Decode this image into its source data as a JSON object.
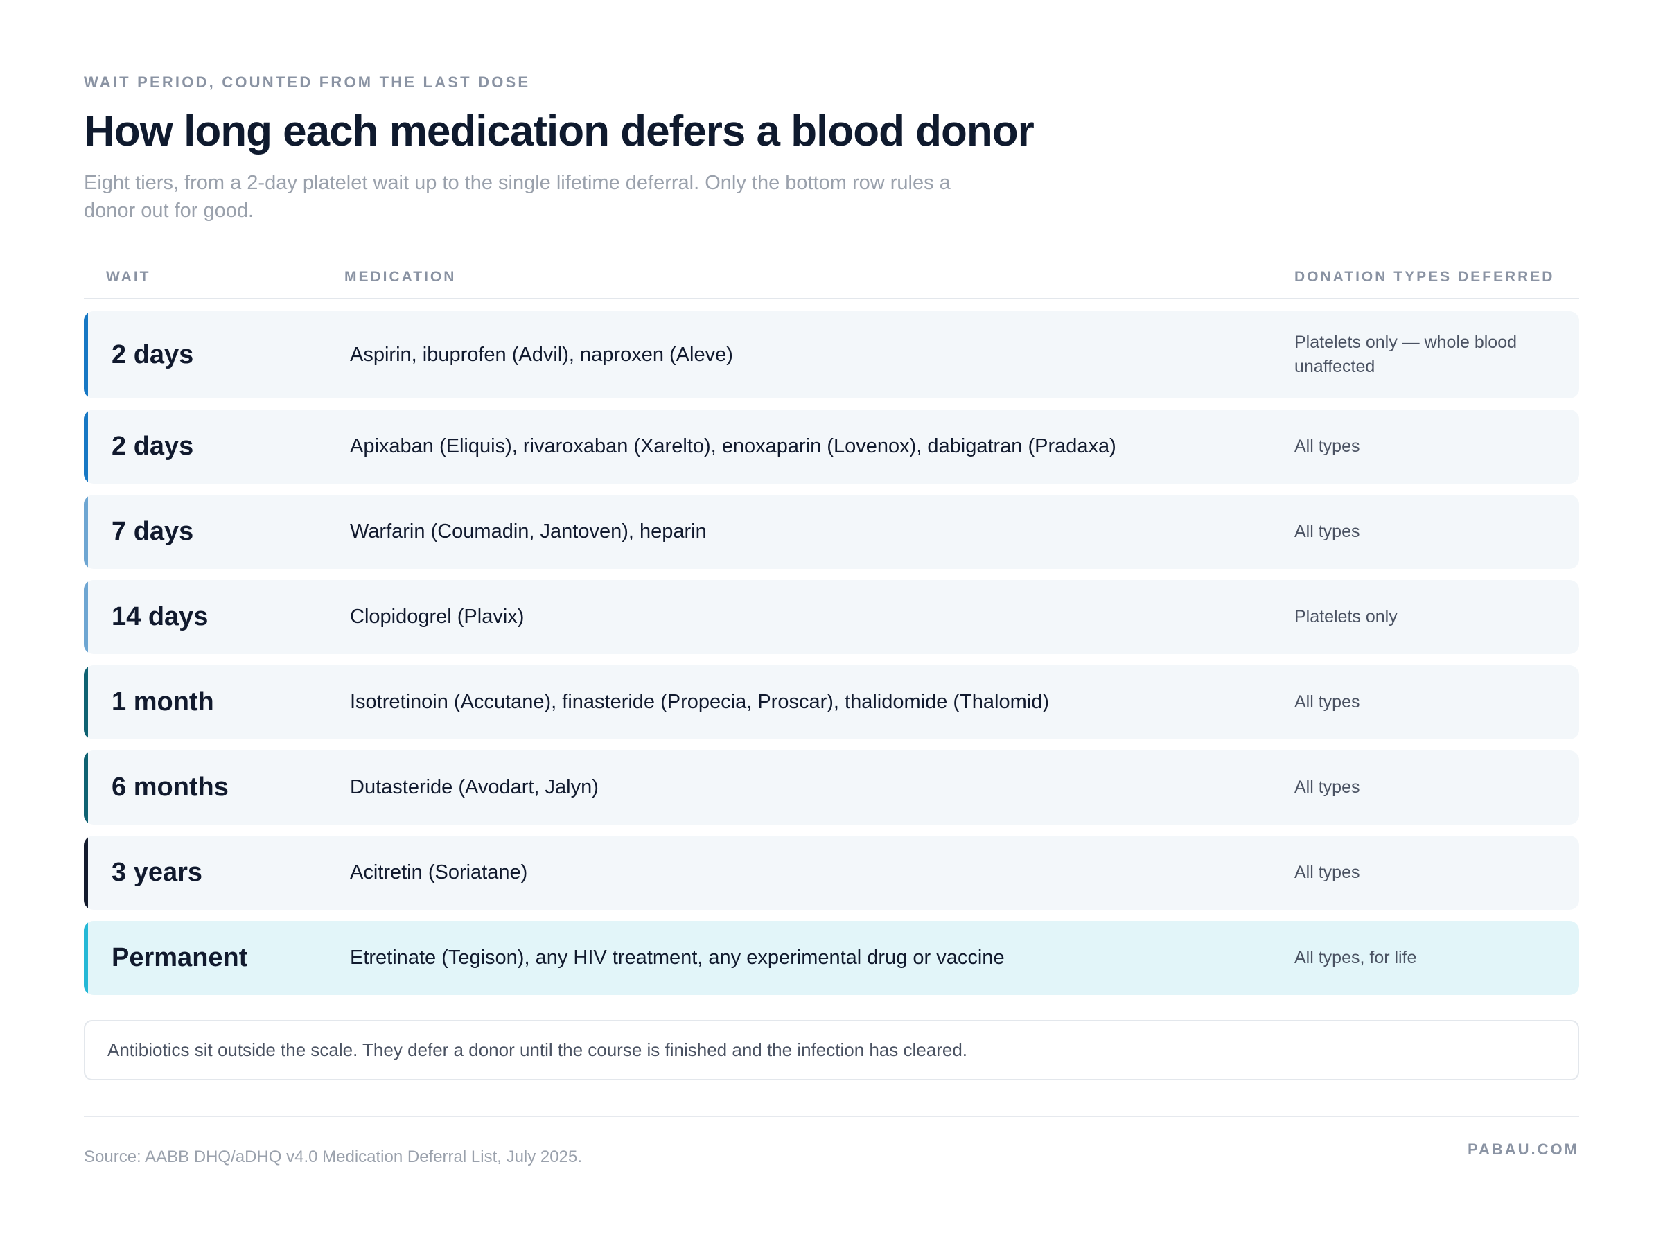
{
  "header": {
    "eyebrow": "WAIT PERIOD, COUNTED FROM THE LAST DOSE",
    "title": "How long each medication defers a blood donor",
    "subtitle": "Eight tiers, from a 2-day platelet wait up to the single lifetime deferral. Only the bottom row rules a donor out for good."
  },
  "table": {
    "columns": {
      "wait": "WAIT",
      "medication": "MEDICATION",
      "types": "DONATION TYPES DEFERRED"
    },
    "rows": [
      {
        "wait": "2 days",
        "medication": "Aspirin, ibuprofen (Advil), naproxen (Aleve)",
        "types": "Platelets only — whole blood unaffected",
        "accent": "#1778c4"
      },
      {
        "wait": "2 days",
        "medication": "Apixaban (Eliquis), rivaroxaban (Xarelto), enoxaparin (Lovenox), dabigatran (Pradaxa)",
        "types": "All types",
        "accent": "#1778c4"
      },
      {
        "wait": "7 days",
        "medication": "Warfarin (Coumadin, Jantoven), heparin",
        "types": "All types",
        "accent": "#6ea6d2"
      },
      {
        "wait": "14 days",
        "medication": "Clopidogrel (Plavix)",
        "types": "Platelets only",
        "accent": "#6ea6d2"
      },
      {
        "wait": "1 month",
        "medication": "Isotretinoin (Accutane), finasteride (Propecia, Proscar), thalidomide (Thalomid)",
        "types": "All types",
        "accent": "#0f6272"
      },
      {
        "wait": "6 months",
        "medication": "Dutasteride (Avodart, Jalyn)",
        "types": "All types",
        "accent": "#0f6272"
      },
      {
        "wait": "3 years",
        "medication": "Acitretin (Soriatane)",
        "types": "All types",
        "accent": "#141c2e"
      },
      {
        "wait": "Permanent",
        "medication": "Etretinate (Tegison), any HIV treatment, any experimental drug or vaccine",
        "types": "All types, for life",
        "accent": "#25b8d6"
      }
    ]
  },
  "note": "Antibiotics sit outside the scale. They defer a donor until the course is finished and the infection has cleared.",
  "footer": {
    "source": "Source: AABB DHQ/aDHQ v4.0 Medication Deferral List, July 2025.",
    "brand": "PABAU.COM"
  }
}
